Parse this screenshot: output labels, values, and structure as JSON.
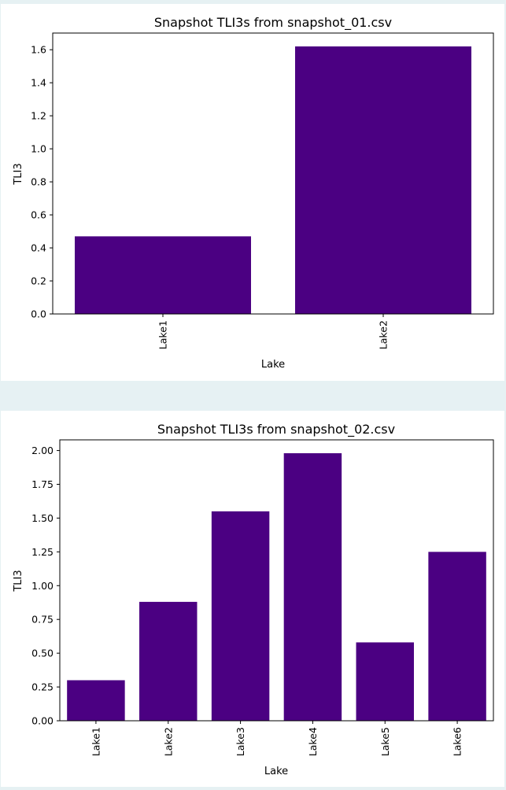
{
  "charts": [
    {
      "title": "Snapshot TLI3s from snapshot_01.csv",
      "xlabel": "Lake",
      "ylabel": "TLI3"
    },
    {
      "title": "Snapshot TLI3s from snapshot_02.csv",
      "xlabel": "Lake",
      "ylabel": "TLI3"
    }
  ],
  "chart_data": [
    {
      "type": "bar",
      "title": "Snapshot TLI3s from snapshot_01.csv",
      "xlabel": "Lake",
      "ylabel": "TLI3",
      "categories": [
        "Lake1",
        "Lake2"
      ],
      "values": [
        0.47,
        1.62
      ],
      "ylim": [
        0,
        1.701
      ],
      "yticks": [
        0.0,
        0.2,
        0.4,
        0.6,
        0.8,
        1.0,
        1.2,
        1.4,
        1.6
      ],
      "ytick_labels": [
        "0.0",
        "0.2",
        "0.4",
        "0.6",
        "0.8",
        "1.0",
        "1.2",
        "1.4",
        "1.6"
      ],
      "bar_color": "#4b0082",
      "grid": false
    },
    {
      "type": "bar",
      "title": "Snapshot TLI3s from snapshot_02.csv",
      "xlabel": "Lake",
      "ylabel": "TLI3",
      "categories": [
        "Lake1",
        "Lake2",
        "Lake3",
        "Lake4",
        "Lake5",
        "Lake6"
      ],
      "values": [
        0.3,
        0.88,
        1.55,
        1.98,
        0.58,
        1.25
      ],
      "ylim": [
        0,
        2.079
      ],
      "yticks": [
        0.0,
        0.25,
        0.5,
        0.75,
        1.0,
        1.25,
        1.5,
        1.75,
        2.0
      ],
      "ytick_labels": [
        "0.00",
        "0.25",
        "0.50",
        "0.75",
        "1.00",
        "1.25",
        "1.50",
        "1.75",
        "2.00"
      ],
      "bar_color": "#4b0082",
      "grid": false
    }
  ]
}
